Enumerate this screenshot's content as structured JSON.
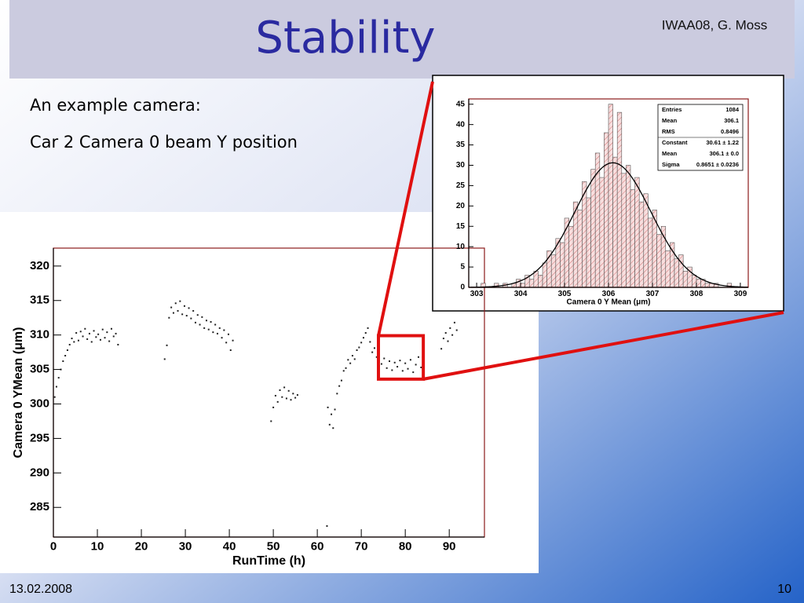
{
  "title": "Stability",
  "author": "IWAA08,  G. Moss",
  "bullets": [
    "An example camera:",
    "Car 2 Camera 0 beam Y position"
  ],
  "footer": {
    "date": "13.02.2008",
    "page": "10"
  },
  "chart_data": [
    {
      "type": "scatter",
      "x_label": "RunTime (h)",
      "y_label": "Camera 0 YMean (μm)",
      "color": "#222222",
      "xlim": [
        0,
        98
      ],
      "ylim": [
        280.7,
        322.6
      ],
      "xticks": [
        0,
        10,
        20,
        30,
        40,
        50,
        60,
        70,
        80,
        90
      ],
      "yticks": [
        285,
        290,
        295,
        300,
        305,
        310,
        315,
        320
      ],
      "highlight": {
        "xlim": [
          73.9,
          84.1
        ],
        "ylim": [
          303.6,
          309.9
        ],
        "color": "#e01010"
      },
      "x": [
        0.3,
        0.7,
        1.2,
        1.7,
        2.2,
        2.7,
        3.2,
        3.7,
        4.2,
        4.7,
        5.2,
        5.7,
        6.2,
        6.7,
        7.2,
        7.7,
        8.2,
        8.7,
        9.2,
        9.7,
        10.2,
        10.7,
        11.2,
        11.7,
        12.2,
        12.7,
        13.2,
        13.7,
        14.2,
        14.7,
        25.3,
        25.8,
        26.3,
        26.8,
        27.3,
        27.8,
        28.3,
        28.8,
        29.3,
        29.8,
        30.3,
        30.8,
        31.3,
        31.8,
        32.3,
        32.8,
        33.3,
        33.8,
        34.3,
        34.8,
        35.3,
        35.8,
        36.3,
        36.8,
        37.3,
        37.8,
        38.3,
        38.8,
        39.3,
        39.8,
        40.3,
        40.8,
        49.5,
        50.0,
        50.5,
        51.0,
        51.5,
        52.0,
        52.5,
        53.0,
        53.5,
        54.0,
        54.5,
        55.0,
        55.5,
        62.2,
        62.4,
        62.8,
        63.2,
        63.6,
        64.0,
        64.5,
        65.0,
        65.5,
        66.0,
        66.5,
        67.0,
        67.5,
        68.0,
        68.5,
        69.0,
        69.5,
        70.0,
        70.5,
        71.0,
        71.5,
        72.0,
        72.5,
        73.0,
        73.5,
        74.0,
        74.6,
        75.2,
        75.8,
        76.4,
        77.0,
        77.6,
        78.2,
        78.8,
        79.4,
        80.0,
        80.6,
        81.2,
        81.8,
        82.4,
        83.0,
        83.6,
        88.2,
        88.7,
        89.2,
        89.7,
        90.2,
        90.7,
        91.2,
        91.7
      ],
      "values": [
        301,
        302.5,
        303.8,
        305,
        306.2,
        307,
        307.8,
        308.6,
        309.5,
        309.0,
        310.3,
        309.2,
        310.5,
        309.8,
        310.9,
        309.4,
        310.2,
        309.0,
        310.6,
        309.7,
        310.1,
        309.3,
        310.8,
        309.6,
        310.4,
        309.1,
        310.9,
        309.8,
        310.2,
        308.6,
        306.5,
        308.5,
        312.5,
        314.0,
        313.2,
        314.6,
        313.5,
        314.9,
        313.0,
        314.2,
        312.8,
        313.9,
        312.4,
        313.5,
        311.8,
        312.9,
        311.5,
        312.6,
        311.0,
        312.1,
        310.8,
        311.9,
        310.4,
        311.5,
        310.2,
        311.0,
        309.6,
        310.7,
        308.9,
        310.1,
        307.8,
        309.2,
        297.5,
        299.5,
        301.2,
        300.3,
        302.0,
        301.0,
        302.4,
        300.8,
        301.9,
        300.6,
        301.5,
        300.9,
        301.3,
        282.3,
        299.5,
        297.0,
        298.5,
        296.5,
        299.2,
        301.5,
        302.6,
        303.4,
        304.8,
        305.2,
        306.4,
        305.9,
        307.0,
        306.5,
        307.8,
        308.2,
        308.9,
        309.6,
        310.3,
        311.0,
        309.0,
        307.5,
        308.1,
        306.8,
        307.6,
        305.8,
        306.6,
        305.2,
        306.2,
        304.9,
        306.0,
        305.4,
        306.3,
        304.8,
        305.9,
        305.1,
        306.4,
        304.6,
        305.7,
        306.8,
        305.3,
        308.0,
        309.5,
        310.3,
        309.1,
        311.0,
        310.0,
        311.8,
        310.7
      ]
    },
    {
      "type": "histogram",
      "x_label": "Camera 0 Y Mean (μm)",
      "color": "#c85a5a",
      "xlim": [
        302.82,
        309.18
      ],
      "ylim": [
        0,
        46.3
      ],
      "xticks": [
        303,
        304,
        305,
        306,
        307,
        308,
        309
      ],
      "yticks": [
        0,
        5,
        10,
        15,
        20,
        25,
        30,
        35,
        40,
        45
      ],
      "bins": [
        303.0,
        303.1,
        303.2,
        303.3,
        303.4,
        303.5,
        303.6,
        303.7,
        303.8,
        303.9,
        304.0,
        304.1,
        304.2,
        304.3,
        304.4,
        304.5,
        304.6,
        304.7,
        304.8,
        304.9,
        305.0,
        305.1,
        305.2,
        305.3,
        305.4,
        305.5,
        305.6,
        305.7,
        305.8,
        305.9,
        306.0,
        306.1,
        306.2,
        306.3,
        306.4,
        306.5,
        306.6,
        306.7,
        306.8,
        306.9,
        307.0,
        307.1,
        307.2,
        307.3,
        307.4,
        307.5,
        307.6,
        307.7,
        307.8,
        307.9,
        308.0,
        308.1,
        308.2,
        308.3,
        308.4,
        308.5,
        308.6,
        308.7,
        308.8,
        308.9,
        309.0
      ],
      "counts": [
        0,
        1,
        0,
        0,
        1,
        0,
        1,
        0,
        1,
        2,
        1,
        3,
        2,
        4,
        3,
        6,
        9,
        8,
        12,
        11,
        17,
        15,
        21,
        19,
        26,
        22,
        29,
        33,
        27,
        38,
        45,
        32,
        43,
        28,
        30,
        24,
        27,
        21,
        23,
        17,
        19,
        13,
        15,
        9,
        11,
        7,
        8,
        4,
        5,
        3,
        2,
        2,
        1,
        1,
        1,
        0,
        0,
        1,
        0,
        0
      ],
      "stats": [
        {
          "name": "Entries",
          "value": 1084
        },
        {
          "name": "Mean",
          "value": 306.1
        },
        {
          "name": "RMS",
          "value": 0.8496
        },
        {
          "name": "Constant",
          "value": 30.61,
          "label": "30.61 ± 1.22"
        },
        {
          "name": "Mean",
          "value": 306.1,
          "label": "306.1 ± 0.0"
        },
        {
          "name": "Sigma",
          "value": 0.8651,
          "label": "0.8651 ± 0.0236"
        }
      ]
    }
  ]
}
